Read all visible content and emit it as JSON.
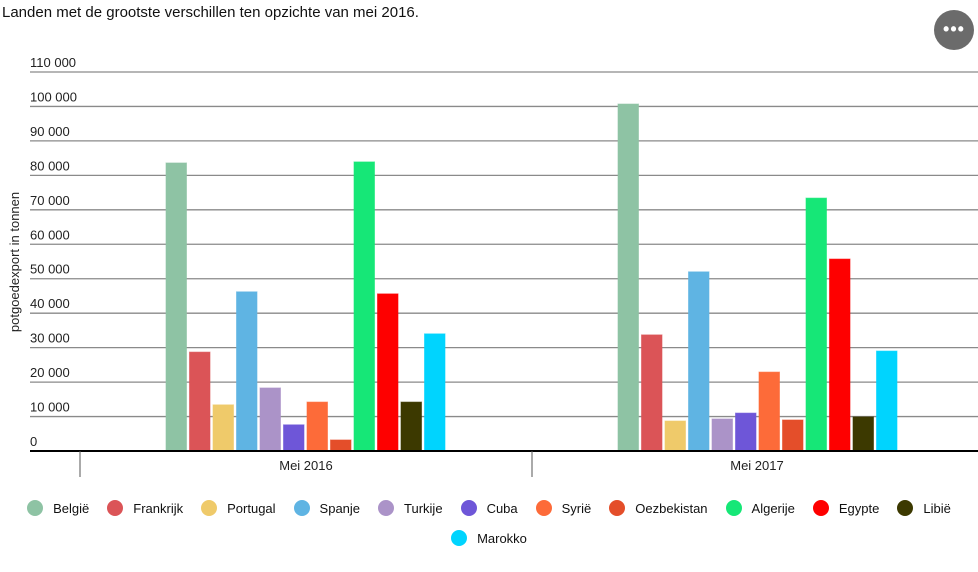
{
  "title": "Landen met de grootste verschillen ten opzichte van mei 2016.",
  "menu_label": "•••",
  "chart_data": {
    "type": "bar",
    "title": "Landen met de grootste verschillen ten opzichte van mei 2016.",
    "xlabel": "",
    "ylabel": "potgoedexport in tonnen",
    "ylim": [
      0,
      110000
    ],
    "yticks": [
      0,
      10000,
      20000,
      30000,
      40000,
      50000,
      60000,
      70000,
      80000,
      90000,
      100000,
      110000
    ],
    "ytick_labels": [
      "0",
      "10 000",
      "20 000",
      "30 000",
      "40 000",
      "50 000",
      "60 000",
      "70 000",
      "80 000",
      "90 000",
      "100 000",
      "110 000"
    ],
    "categories": [
      "Mei 2016",
      "Mei 2017"
    ],
    "grid": true,
    "legend_position": "bottom",
    "series": [
      {
        "name": "België",
        "color": "#8ec3a4",
        "values": [
          83600,
          100700
        ]
      },
      {
        "name": "Frankrijk",
        "color": "#db5457",
        "values": [
          28700,
          33700
        ]
      },
      {
        "name": "Portugal",
        "color": "#efca6a",
        "values": [
          13400,
          8700
        ]
      },
      {
        "name": "Spanje",
        "color": "#5fb4e3",
        "values": [
          46200,
          52000
        ]
      },
      {
        "name": "Turkije",
        "color": "#ab93c8",
        "values": [
          18300,
          9300
        ]
      },
      {
        "name": "Cuba",
        "color": "#6e56d8",
        "values": [
          7600,
          11000
        ]
      },
      {
        "name": "Syrië",
        "color": "#fd6b39",
        "values": [
          14200,
          22900
        ]
      },
      {
        "name": "Oezbekistan",
        "color": "#e44e2a",
        "values": [
          3200,
          9000
        ]
      },
      {
        "name": "Algerije",
        "color": "#16e777",
        "values": [
          83900,
          73400
        ]
      },
      {
        "name": "Egypte",
        "color": "#fe0000",
        "values": [
          45600,
          55700
        ]
      },
      {
        "name": "Libië",
        "color": "#3c3900",
        "values": [
          14200,
          9900
        ]
      },
      {
        "name": "Marokko",
        "color": "#00d4fe",
        "values": [
          34000,
          29000
        ]
      }
    ]
  }
}
